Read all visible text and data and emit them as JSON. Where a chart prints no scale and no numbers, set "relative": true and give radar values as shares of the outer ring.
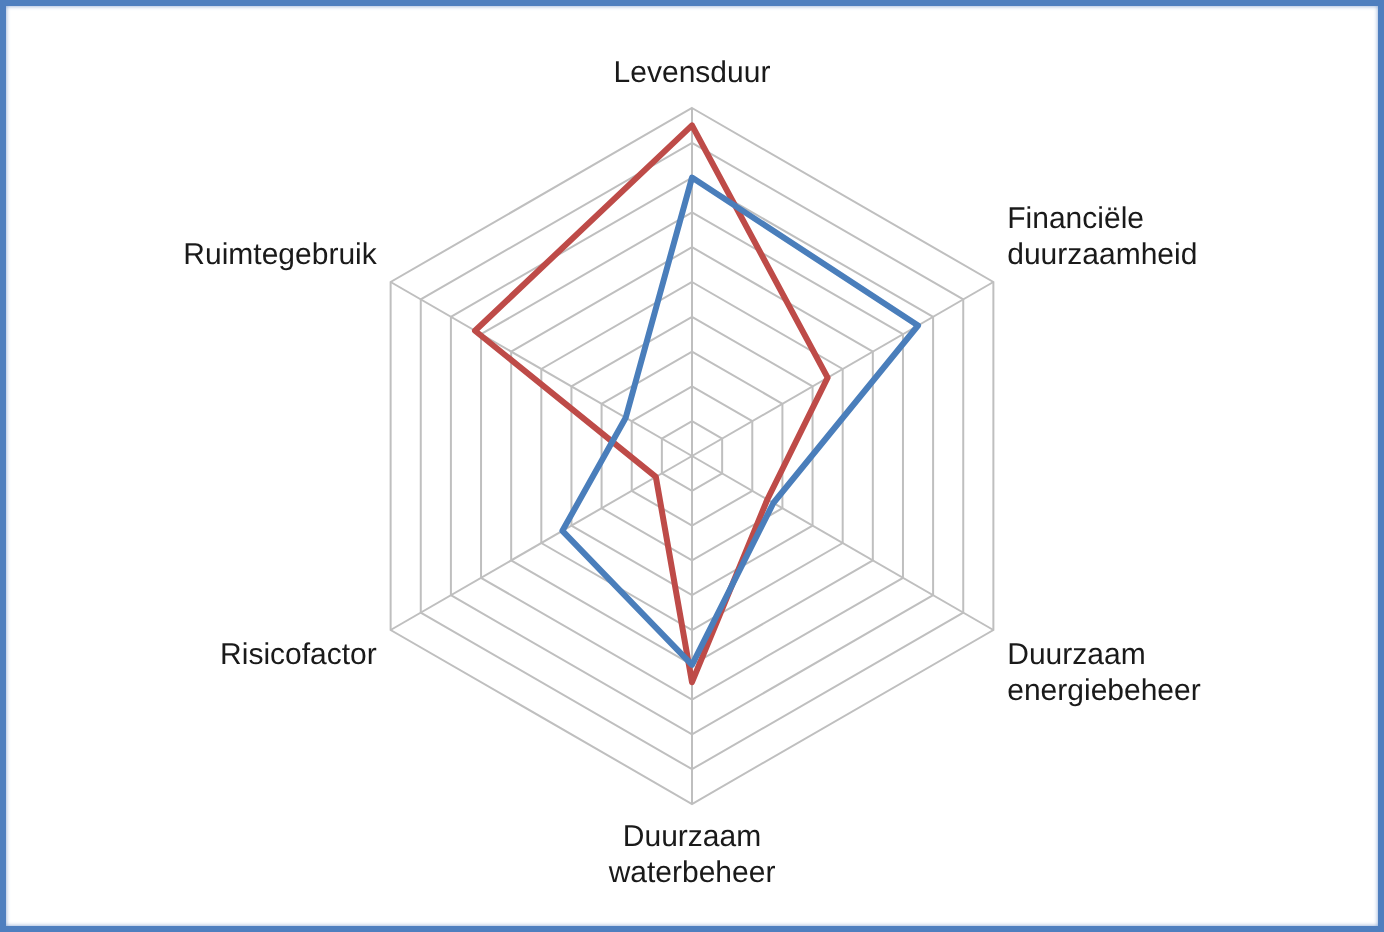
{
  "chart_data": {
    "type": "radar",
    "relative": true,
    "grid": true,
    "marker": "none",
    "line_style": "solid",
    "categories": [
      "Levensduur",
      "Financiële duurzaamheid",
      "Duurzaam energiebeheer",
      "Duurzaam waterbeheer",
      "Risicofactor",
      "Ruimtegebruik"
    ],
    "series": [
      {
        "color": "#4a7ebb",
        "values": [
          0.8,
          0.75,
          0.27,
          0.6,
          0.43,
          0.22
        ]
      },
      {
        "color": "#be4b48",
        "values": [
          0.95,
          0.45,
          0.25,
          0.65,
          0.12,
          0.72
        ]
      }
    ]
  }
}
